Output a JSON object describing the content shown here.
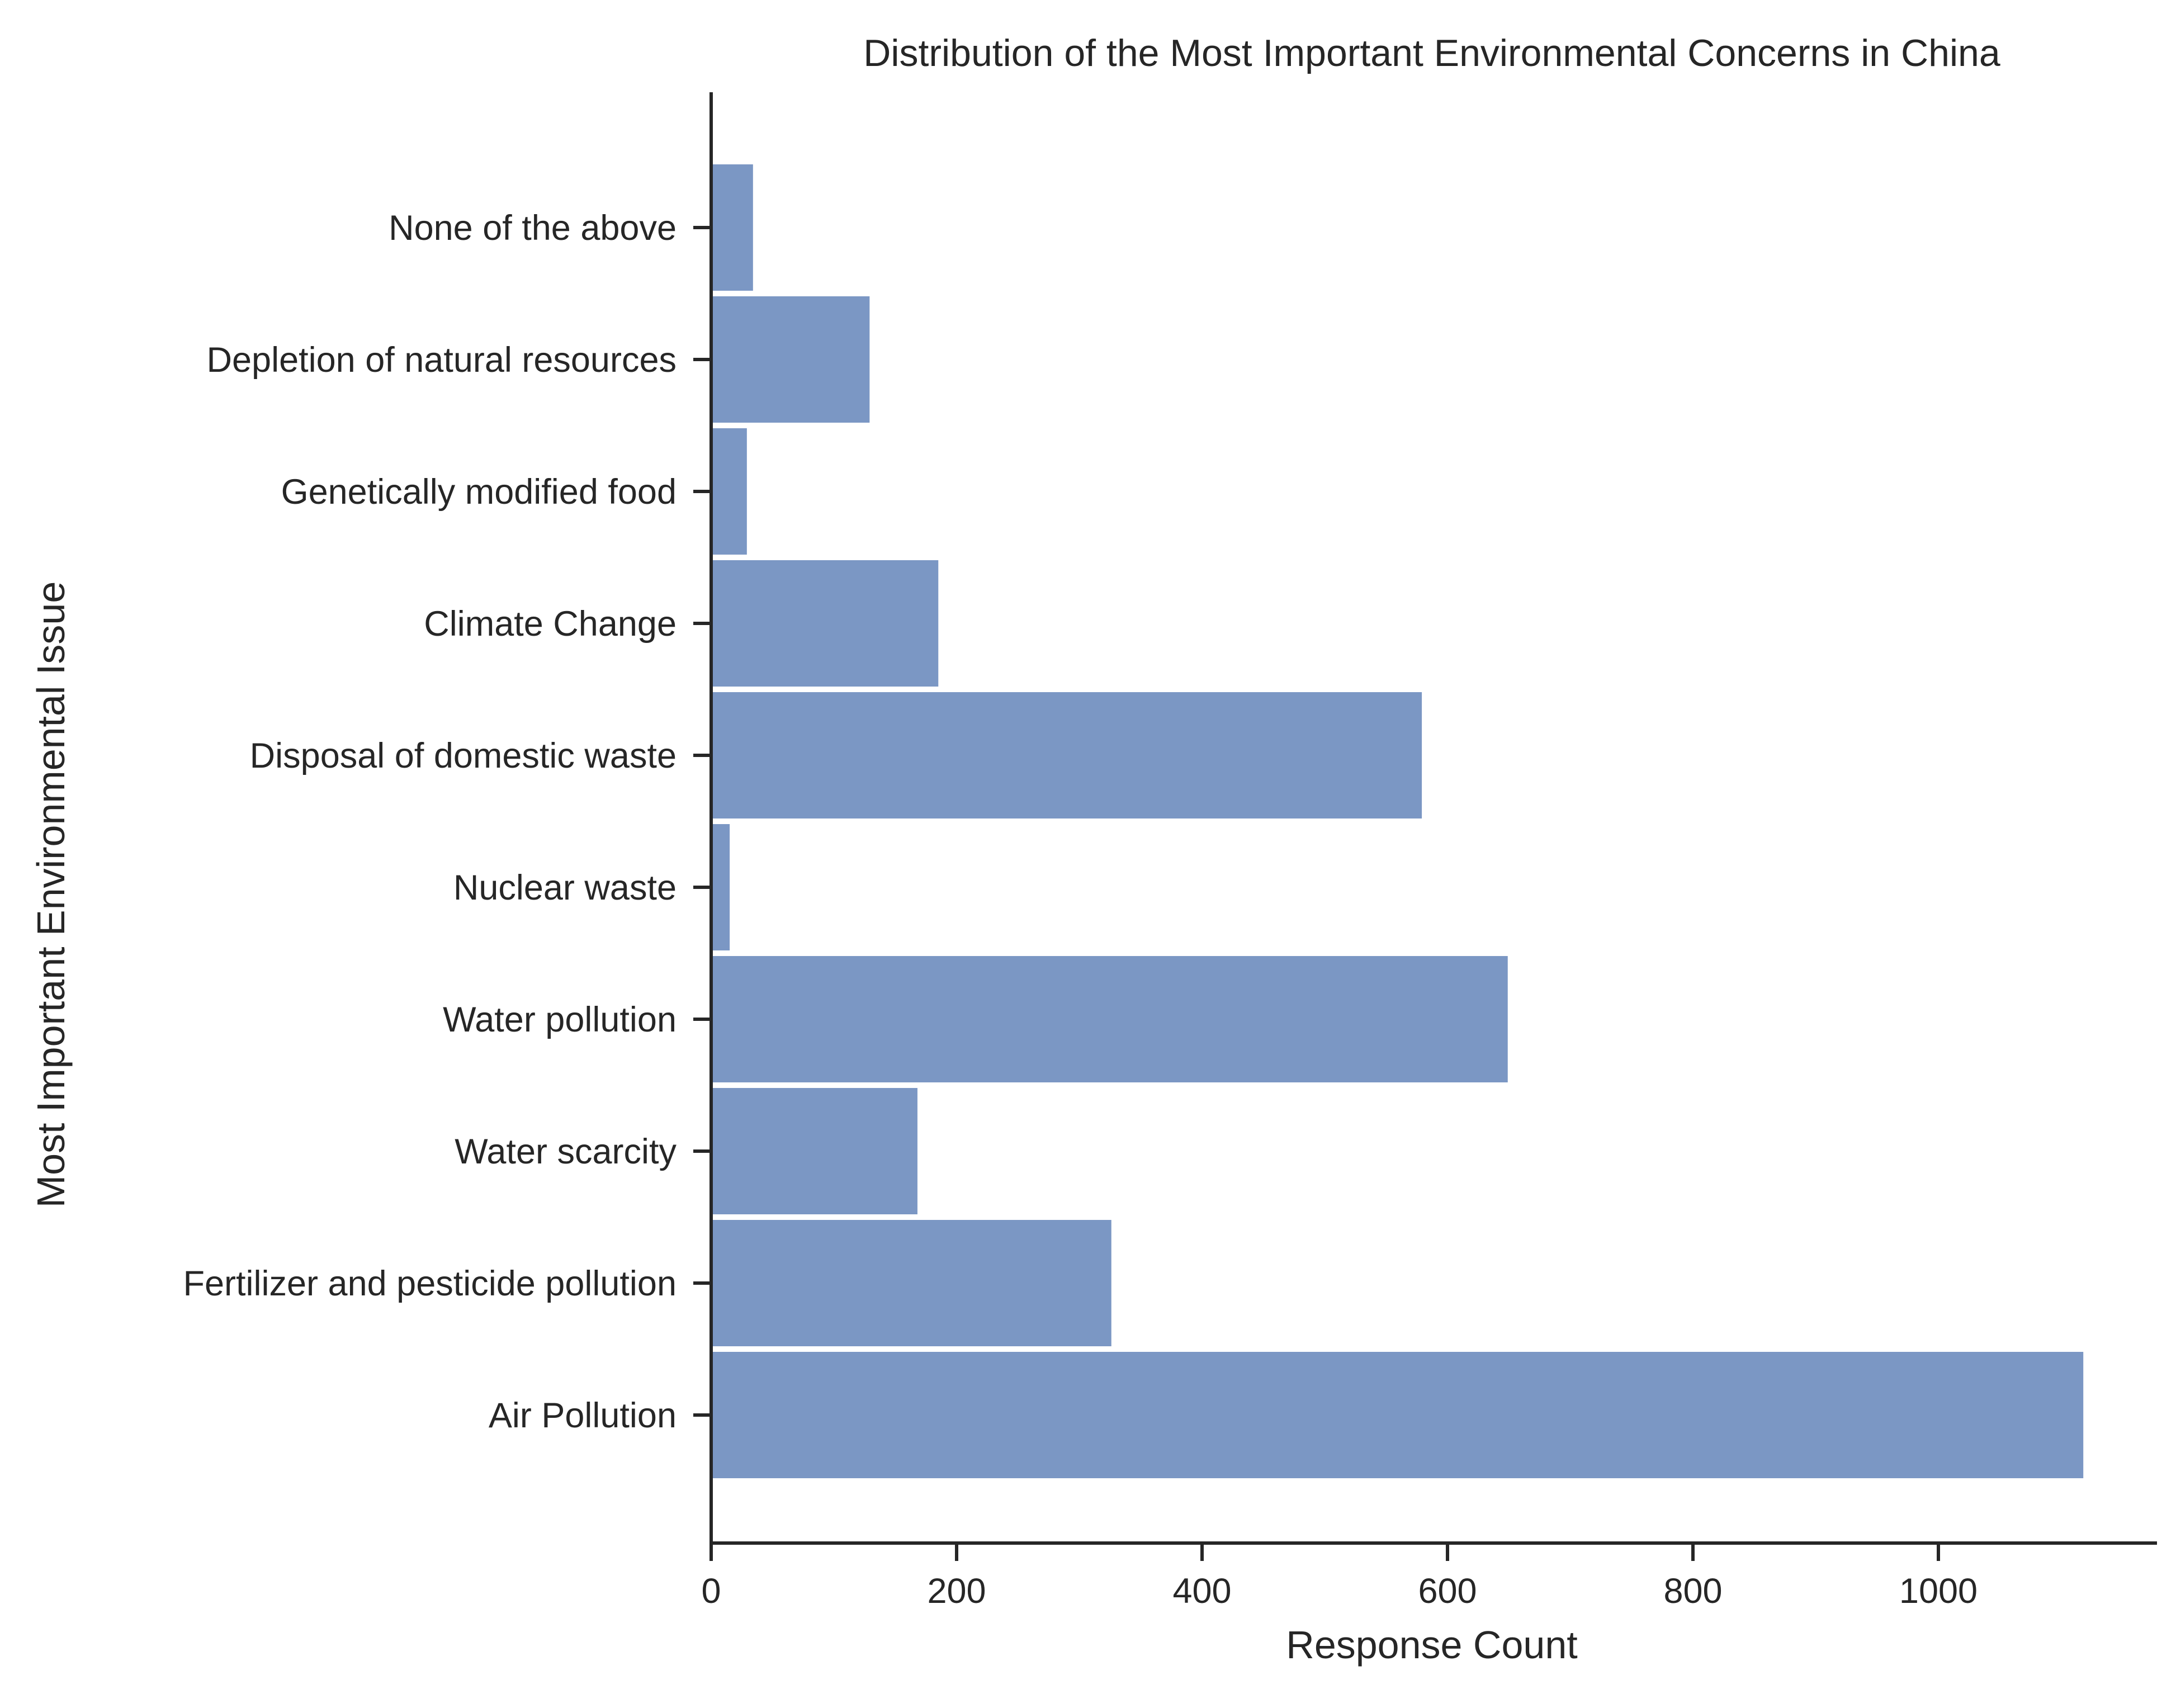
{
  "chart_data": {
    "type": "bar",
    "orientation": "horizontal",
    "title": "Distribution of the Most Important Environmental Concerns in China",
    "xlabel": "Response Count",
    "ylabel": "Most Important Environmental Issue",
    "xlim": [
      0,
      1175
    ],
    "xticks": [
      0,
      200,
      400,
      600,
      800,
      1000
    ],
    "grid": false,
    "bar_color": "#7b97c4",
    "categories": [
      "None of the above",
      "Depletion of natural resources",
      "Genetically modified food",
      "Climate Change",
      "Disposal of domestic waste",
      "Nuclear waste",
      "Water pollution",
      "Water scarcity",
      "Fertilizer and pesticide pollution",
      "Air Pollution"
    ],
    "values": [
      35,
      130,
      30,
      186,
      580,
      16,
      650,
      169,
      327,
      1119
    ]
  }
}
